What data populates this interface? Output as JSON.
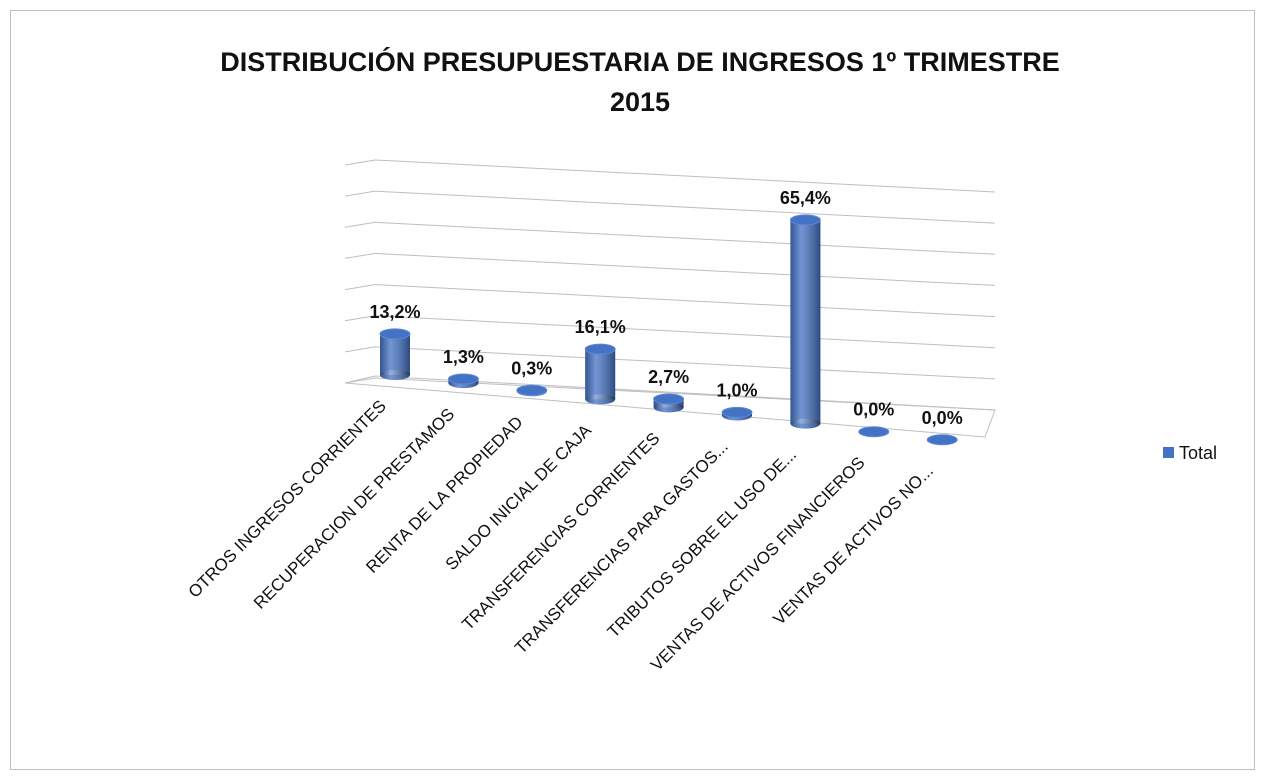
{
  "chart_data": {
    "type": "bar3d",
    "title": "DISTRIBUCIÓN PRESUPUESTARIA DE INGRESOS 1º TRIMESTRE 2015",
    "categories": [
      "OTROS INGRESOS CORRIENTES",
      "RECUPERACION DE PRESTAMOS",
      "RENTA DE LA PROPIEDAD",
      "SALDO INICIAL DE CAJA",
      "TRANSFERENCIAS CORRIENTES",
      "TRANSFERENCIAS PARA GASTOS...",
      "TRIBUTOS SOBRE EL USO DE...",
      "VENTAS DE ACTIVOS FINANCIEROS",
      "VENTAS DE ACTIVOS NO..."
    ],
    "series": [
      {
        "name": "Total",
        "color": "#4472c4",
        "values": [
          13.2,
          1.3,
          0.3,
          16.1,
          2.7,
          1.0,
          65.4,
          0.0,
          0.0
        ],
        "value_labels": [
          "13,2%",
          "1,3%",
          "0,3%",
          "16,1%",
          "2,7%",
          "1,0%",
          "65,4%",
          "0,0%",
          "0,0%"
        ]
      }
    ],
    "ylim": [
      0,
      70
    ],
    "yticks": [
      0,
      10,
      20,
      30,
      40,
      50,
      60,
      70
    ],
    "grid": true,
    "legend": "right"
  }
}
